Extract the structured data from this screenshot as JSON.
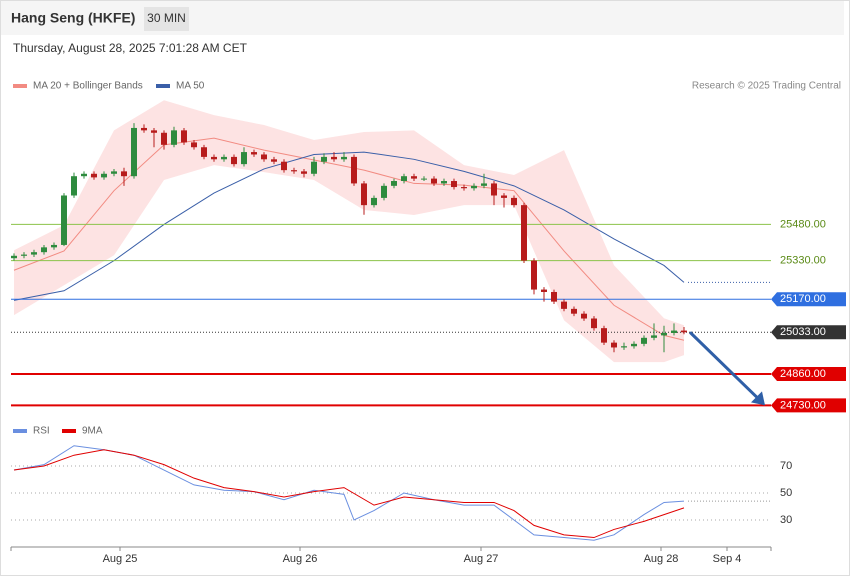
{
  "chart_data": [
    {
      "type": "candlestick",
      "title": "Hang Seng (HKFE)",
      "timeframe": "30 MIN",
      "subtitle": "Thursday, August 28, 2025 7:01:28 AM CET",
      "source": "Research © 2025 Trading Central",
      "open": [
        25340,
        25350,
        25355,
        25365,
        25385,
        25395,
        25600,
        25680,
        25690,
        25675,
        25690,
        25700,
        25680,
        25880,
        25870,
        25860,
        25810,
        25870,
        25820,
        25800,
        25760,
        25750,
        25760,
        25730,
        25780,
        25770,
        25750,
        25740,
        25705,
        25700,
        25690,
        25740,
        25760,
        25750,
        25760,
        25650,
        25560,
        25590,
        25640,
        25660,
        25680,
        25670,
        25670,
        25650,
        25660,
        25635,
        25630,
        25640,
        25650,
        25600,
        25590,
        25560,
        25330,
        25210,
        25200,
        25160,
        25130,
        25110,
        25090,
        25050,
        24990,
        24970,
        24975,
        24985,
        25010,
        25020,
        25030,
        25040
      ],
      "high": [
        25360,
        25365,
        25375,
        25395,
        25405,
        25610,
        25695,
        25700,
        25700,
        25700,
        25710,
        25715,
        25900,
        25895,
        25880,
        25870,
        25885,
        25880,
        25830,
        25810,
        25770,
        25770,
        25770,
        25800,
        25790,
        25780,
        25760,
        25750,
        25715,
        25710,
        25760,
        25775,
        25780,
        25780,
        25770,
        25660,
        25600,
        25650,
        25670,
        25690,
        25690,
        25680,
        25680,
        25670,
        25670,
        25645,
        25650,
        25690,
        25660,
        25610,
        25600,
        25570,
        25340,
        25220,
        25210,
        25170,
        25140,
        25120,
        25100,
        25060,
        25000,
        24990,
        24995,
        25020,
        25070,
        25060,
        25070,
        25055
      ],
      "low": [
        25330,
        25340,
        25345,
        25355,
        25375,
        25390,
        25590,
        25670,
        25665,
        25665,
        25680,
        25640,
        25670,
        25860,
        25800,
        25790,
        25800,
        25810,
        25790,
        25750,
        25740,
        25740,
        25720,
        25720,
        25760,
        25740,
        25730,
        25695,
        25690,
        25675,
        25680,
        25730,
        25740,
        25740,
        25640,
        25520,
        25550,
        25580,
        25630,
        25650,
        25660,
        25660,
        25640,
        25640,
        25625,
        25620,
        25620,
        25630,
        25560,
        25550,
        25550,
        25320,
        25190,
        25160,
        25150,
        25120,
        25100,
        25080,
        25040,
        24980,
        24950,
        24960,
        24965,
        24975,
        25000,
        24950,
        25020,
        25025
      ],
      "close": [
        25350,
        25355,
        25365,
        25385,
        25395,
        25600,
        25680,
        25690,
        25675,
        25690,
        25700,
        25680,
        25880,
        25870,
        25860,
        25810,
        25870,
        25820,
        25800,
        25760,
        25750,
        25760,
        25730,
        25780,
        25770,
        25750,
        25740,
        25705,
        25700,
        25690,
        25740,
        25760,
        25750,
        25760,
        25650,
        25560,
        25590,
        25640,
        25660,
        25680,
        25670,
        25670,
        25650,
        25660,
        25635,
        25630,
        25640,
        25650,
        25600,
        25590,
        25560,
        25330,
        25210,
        25200,
        25160,
        25130,
        25110,
        25090,
        25050,
        24990,
        24970,
        24975,
        24985,
        25010,
        25020,
        25030,
        25040,
        25033
      ],
      "up_color": "#2e8b3e",
      "down_color": "#b71c1c",
      "xlim": [
        -0.3,
        75.7
      ],
      "ylim": [
        24690,
        26000
      ],
      "overlays": [
        {
          "name": "MA 20 + Bollinger Bands",
          "color": "#f28b82",
          "band_color": "#fde3e3",
          "x": [
            0,
            5,
            10,
            15,
            20,
            25,
            30,
            35,
            40,
            45,
            50,
            55,
            60,
            65,
            67
          ],
          "values": [
            25290,
            25370,
            25620,
            25810,
            25838,
            25788,
            25747,
            25705,
            25650,
            25643,
            25620,
            25370,
            25145,
            25020,
            25000
          ],
          "upper": [
            25373,
            25477,
            25870,
            25995,
            25933,
            25892,
            25830,
            25863,
            25870,
            25726,
            25685,
            25788,
            25311,
            25091,
            25062
          ],
          "lower": [
            25104,
            25228,
            25352,
            25664,
            25726,
            25697,
            25664,
            25540,
            25519,
            25560,
            25560,
            25083,
            24909,
            24909,
            24938
          ]
        },
        {
          "name": "MA 50",
          "color": "#3a5fa8",
          "x": [
            0,
            5,
            10,
            15,
            20,
            25,
            30,
            35,
            40,
            45,
            50,
            55,
            60,
            65,
            67
          ],
          "values": [
            25165,
            25205,
            25330,
            25480,
            25610,
            25710,
            25770,
            25780,
            25750,
            25700,
            25640,
            25540,
            25420,
            25310,
            25240
          ]
        }
      ],
      "levels": [
        {
          "value": 25480,
          "label": "25480.00",
          "color": "#8bc34a",
          "text_color": "#5a8a16",
          "style": "solid",
          "boxed": false
        },
        {
          "value": 25330,
          "label": "25330.00",
          "color": "#8bc34a",
          "text_color": "#5a8a16",
          "style": "solid",
          "boxed": false
        },
        {
          "value": 25170,
          "label": "25170.00",
          "color": "#2f6fe0",
          "text_color": "#ffffff",
          "style": "solid",
          "boxed": true
        },
        {
          "value": 25033,
          "label": "25033.00",
          "color": "#333333",
          "text_color": "#ffffff",
          "style": "dotted",
          "boxed": true
        },
        {
          "value": 24860,
          "label": "24860.00",
          "color": "#e00000",
          "text_color": "#ffffff",
          "style": "thick",
          "boxed": true
        },
        {
          "value": 24730,
          "label": "24730.00",
          "color": "#e00000",
          "text_color": "#ffffff",
          "style": "thick",
          "boxed": true
        }
      ],
      "arrow_color": "#2f5fa7"
    },
    {
      "type": "line",
      "series": [
        {
          "name": "RSI",
          "color": "#6a8fe0",
          "x": [
            0,
            3,
            6,
            9,
            12,
            15,
            18,
            21,
            24,
            27,
            30,
            33,
            34,
            36,
            39,
            42,
            45,
            48,
            50,
            52,
            55,
            58,
            60,
            63,
            65,
            67
          ],
          "values": [
            67,
            71,
            85,
            82,
            78,
            67,
            56,
            52,
            51,
            45,
            52,
            49,
            30,
            37,
            50,
            45,
            41,
            41,
            30,
            19,
            17,
            15,
            19,
            34,
            43,
            44
          ]
        },
        {
          "name": "9MA",
          "color": "#e00000",
          "x": [
            0,
            3,
            6,
            9,
            12,
            15,
            18,
            21,
            24,
            27,
            30,
            33,
            36,
            39,
            42,
            45,
            48,
            50,
            52,
            55,
            58,
            60,
            63,
            65,
            67
          ],
          "values": [
            67,
            70,
            78,
            82,
            78,
            71,
            61,
            54,
            51,
            47,
            51,
            54,
            41,
            47,
            45,
            43,
            43,
            37,
            26,
            19,
            17,
            23,
            29,
            34,
            39
          ]
        }
      ],
      "xlim": [
        -0.3,
        75.7
      ],
      "ylim": [
        12,
        89
      ],
      "yticks": [
        30,
        50,
        70
      ],
      "grid": true,
      "xticks": [
        {
          "value": 10.6,
          "label": "Aug 25"
        },
        {
          "value": 28.6,
          "label": "Aug 26"
        },
        {
          "value": 46.7,
          "label": "Aug 27"
        },
        {
          "value": 64.7,
          "label": "Aug 28"
        },
        {
          "value": 71.3,
          "label": "Sep 4"
        }
      ]
    }
  ]
}
